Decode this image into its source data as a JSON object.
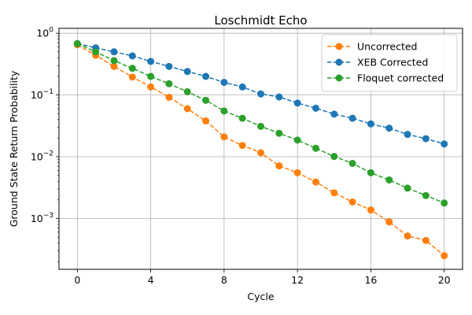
{
  "chart_data": {
    "type": "line",
    "title": "Loschmidt Echo",
    "xlabel": "Cycle",
    "ylabel": "Ground State Return Probability",
    "xlim": [
      -1,
      21
    ],
    "ylim": [
      0.00015,
      1.2
    ],
    "yscale": "log",
    "grid": true,
    "legend_position": "top-right",
    "x_ticks": [
      0,
      4,
      8,
      12,
      16,
      20
    ],
    "y_ticks": [
      {
        "value": 0.001,
        "base": "10",
        "exp": "−3"
      },
      {
        "value": 0.01,
        "base": "10",
        "exp": "−2"
      },
      {
        "value": 0.1,
        "base": "10",
        "exp": "−1"
      },
      {
        "value": 1,
        "base": "10",
        "exp": "0"
      }
    ],
    "x": [
      0,
      1,
      2,
      3,
      4,
      5,
      6,
      7,
      8,
      9,
      10,
      11,
      12,
      13,
      14,
      15,
      16,
      17,
      18,
      19,
      20
    ],
    "series": [
      {
        "name": "Uncorrected",
        "color": "#ff7f0e",
        "values": [
          0.65,
          0.44,
          0.29,
          0.195,
          0.135,
          0.092,
          0.06,
          0.038,
          0.021,
          0.0152,
          0.0116,
          0.0071,
          0.0055,
          0.0039,
          0.0026,
          0.00185,
          0.00137,
          0.00088,
          0.00052,
          0.00044,
          0.00025
        ]
      },
      {
        "name": "XEB Corrected",
        "color": "#1f77b4",
        "values": [
          0.68,
          0.58,
          0.5,
          0.43,
          0.35,
          0.29,
          0.24,
          0.2,
          0.16,
          0.135,
          0.104,
          0.093,
          0.074,
          0.061,
          0.049,
          0.042,
          0.034,
          0.029,
          0.023,
          0.0196,
          0.0161
        ]
      },
      {
        "name": "Floquet corrected",
        "color": "#2ca02c",
        "values": [
          0.68,
          0.5,
          0.36,
          0.27,
          0.2,
          0.152,
          0.113,
          0.082,
          0.055,
          0.042,
          0.031,
          0.024,
          0.0186,
          0.0137,
          0.0101,
          0.0078,
          0.0055,
          0.0042,
          0.0031,
          0.00235,
          0.00178
        ]
      }
    ]
  }
}
